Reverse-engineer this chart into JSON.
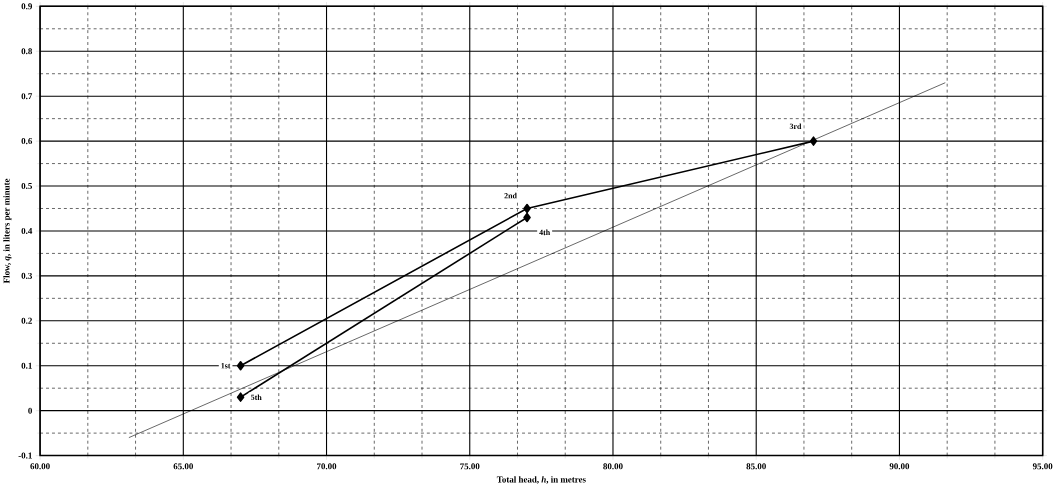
{
  "chart_data": {
    "type": "line",
    "xlabel": "Total head, *h*, in metres",
    "ylabel": "Flow, *q*, in liters per minute",
    "xlim": [
      60,
      95
    ],
    "ylim": [
      -0.1,
      0.9
    ],
    "xticks": [
      {
        "value": 60,
        "label": "60.00"
      },
      {
        "value": 65,
        "label": "65.00"
      },
      {
        "value": 70,
        "label": "70.00"
      },
      {
        "value": 75,
        "label": "75.00"
      },
      {
        "value": 80,
        "label": "80.00"
      },
      {
        "value": 85,
        "label": "85.00"
      },
      {
        "value": 90,
        "label": "90.00"
      },
      {
        "value": 95,
        "label": "95.00"
      }
    ],
    "yticks": [
      -0.1,
      0,
      0.1,
      0.2,
      0.3,
      0.4,
      0.5,
      0.6,
      0.7,
      0.8,
      0.9
    ],
    "grid": true,
    "series": [
      {
        "color": "#000000",
        "x": [
          67,
          77,
          87
        ],
        "values": [
          0.1,
          0.45,
          0.6
        ],
        "marker": "diamond"
      },
      {
        "color": "#000000",
        "x": [
          67,
          77
        ],
        "values": [
          0.03,
          0.43
        ],
        "marker": "diamond"
      },
      {
        "color": "#000000",
        "x": [
          63.1,
          91.6
        ],
        "values": [
          -0.06,
          0.73
        ],
        "marker": "none",
        "line_style": "solid"
      }
    ],
    "annotations": [
      {
        "text": "1st",
        "x": 67,
        "y": 0.1
      },
      {
        "text": "2nd",
        "x": 77,
        "y": 0.45
      },
      {
        "text": "3rd",
        "x": 87,
        "y": 0.6
      },
      {
        "text": "4th",
        "x": 77,
        "y": 0.43
      },
      {
        "text": "5th",
        "x": 67,
        "y": 0.03
      }
    ]
  }
}
